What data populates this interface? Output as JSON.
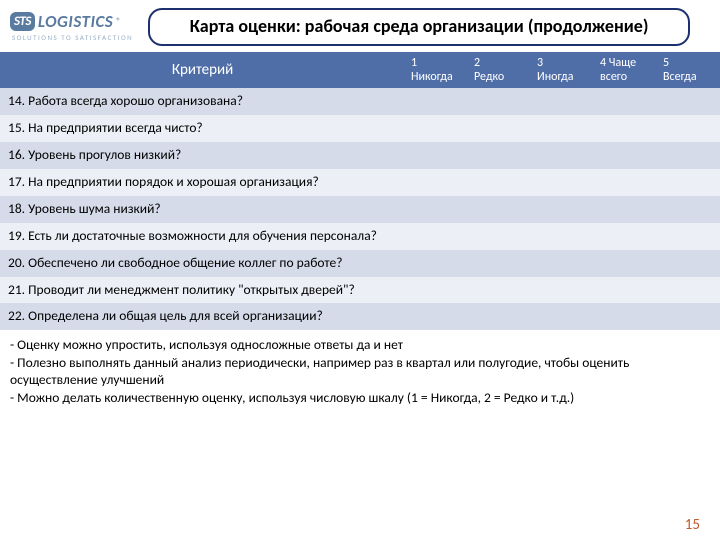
{
  "logo": {
    "badge": "STS",
    "text": "LOGISTICS",
    "reg": "®",
    "tagline": "SOLUTIONS TO SATISFACTION"
  },
  "title": "Карта оценки: рабочая среда организации (продолжение)",
  "columns": {
    "criterion": "Критерий",
    "scale": [
      {
        "num": "1",
        "label": "Никогда"
      },
      {
        "num": "2",
        "label": "Редко"
      },
      {
        "num": "3",
        "label": "Иногда"
      },
      {
        "num": "4 Чаще",
        "label": "всего"
      },
      {
        "num": "5",
        "label": "Всегда"
      }
    ]
  },
  "rows": [
    "14. Работа всегда хорошо организована?",
    "15. На предприятии всегда чисто?",
    "16. Уровень прогулов низкий?",
    "17. На предприятии порядок и хорошая организация?",
    "18. Уровень шума низкий?",
    "19. Есть ли  достаточные возможности для обучения персонала?",
    "20. Обеспечено ли  свободное общение коллег по работе?",
    "21. Проводит ли менеджмент политику \"открытых дверей\"?",
    "22. Определена ли общая цель для всей организации?"
  ],
  "notes": [
    "- Оценку можно упростить, используя односложные ответы да и нет",
    "- Полезно выполнять данный анализ периодически, например раз в квартал или полугодие, чтобы оценить осуществление улучшений",
    "- Можно делать количественную оценку, используя числовую шкалу (1 = Никогда, 2 = Редко и т.д.)"
  ],
  "pageNumber": "15"
}
